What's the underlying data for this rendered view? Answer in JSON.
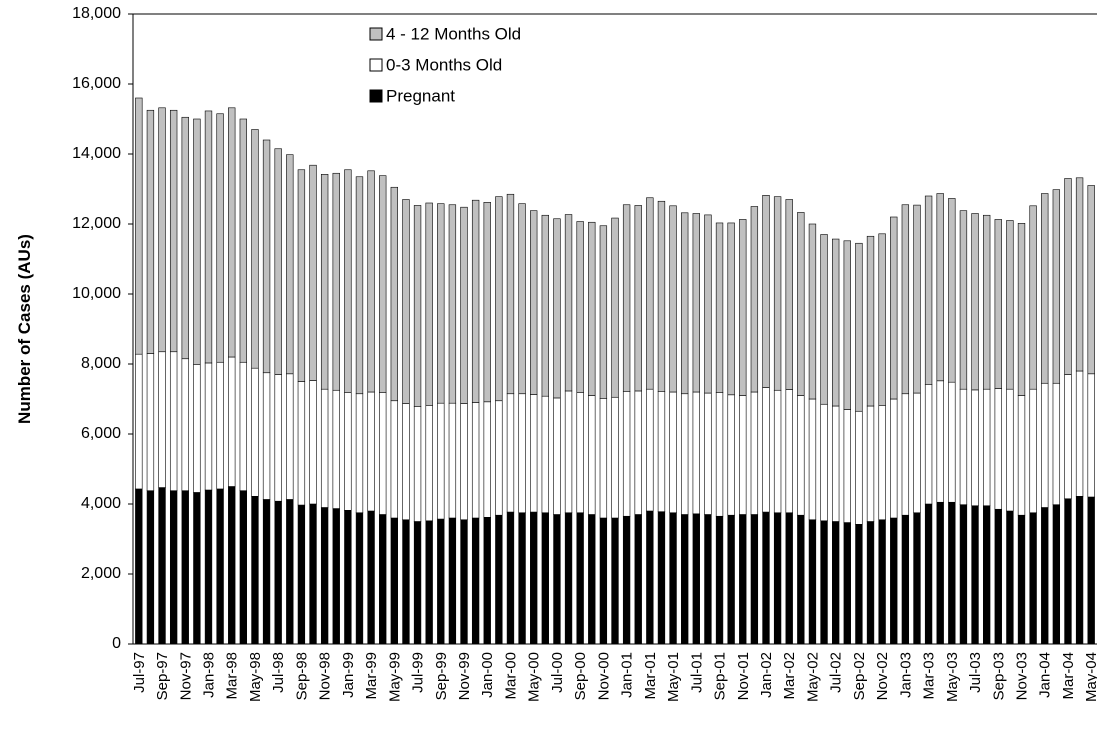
{
  "chart_data": {
    "type": "stacked_bar",
    "y_label": "Number of Cases (AUs)",
    "categories": [
      "Jul-97",
      null,
      "Sep-97",
      null,
      "Nov-97",
      null,
      "Jan-98",
      null,
      "Mar-98",
      null,
      "May-98",
      null,
      "Jul-98",
      null,
      "Sep-98",
      null,
      "Nov-98",
      null,
      "Jan-99",
      null,
      "Mar-99",
      null,
      "May-99",
      null,
      "Jul-99",
      null,
      "Sep-99",
      null,
      "Nov-99",
      null,
      "Jan-00",
      null,
      "Mar-00",
      null,
      "May-00",
      null,
      "Jul-00",
      null,
      "Sep-00",
      null,
      "Nov-00",
      null,
      "Jan-01",
      null,
      "Mar-01",
      null,
      "May-01",
      null,
      "Jul-01",
      null,
      "Sep-01",
      null,
      "Nov-01",
      null,
      "Jan-02",
      null,
      "Mar-02",
      null,
      "May-02",
      null,
      "Jul-02",
      null,
      "Sep-02",
      null,
      "Nov-02",
      null,
      "Jan-03",
      null,
      "Mar-03",
      null,
      "May-03",
      null,
      "Jul-03",
      null,
      "Sep-03",
      null,
      "Nov-03",
      null,
      "Jan-04",
      null,
      "Mar-04",
      null,
      "May-04"
    ],
    "series": [
      {
        "name": "Pregnant",
        "color": "#000000",
        "values": [
          4430,
          4380,
          4470,
          4380,
          4380,
          4330,
          4400,
          4430,
          4500,
          4380,
          4220,
          4130,
          4080,
          4130,
          3970,
          4000,
          3900,
          3870,
          3820,
          3750,
          3800,
          3700,
          3600,
          3550,
          3500,
          3520,
          3570,
          3600,
          3550,
          3600,
          3620,
          3680,
          3770,
          3750,
          3770,
          3750,
          3700,
          3750,
          3750,
          3700,
          3600,
          3600,
          3650,
          3700,
          3800,
          3780,
          3750,
          3700,
          3720,
          3700,
          3650,
          3680,
          3700,
          3700,
          3770,
          3750,
          3750,
          3680,
          3550,
          3520,
          3500,
          3470,
          3420,
          3500,
          3550,
          3600,
          3680,
          3750,
          4000,
          4050,
          4050,
          3980,
          3950,
          3950,
          3850,
          3800,
          3680,
          3750,
          3900,
          3980,
          4150,
          4220,
          4200
        ]
      },
      {
        "name": "0-3 Months Old",
        "color": "#ffffff",
        "values": [
          3850,
          3920,
          3880,
          3970,
          3770,
          3650,
          3630,
          3620,
          3700,
          3670,
          3660,
          3620,
          3620,
          3590,
          3530,
          3530,
          3380,
          3380,
          3360,
          3400,
          3400,
          3480,
          3350,
          3320,
          3280,
          3300,
          3310,
          3280,
          3320,
          3300,
          3300,
          3270,
          3380,
          3400,
          3360,
          3330,
          3330,
          3480,
          3430,
          3400,
          3420,
          3450,
          3570,
          3530,
          3480,
          3440,
          3450,
          3450,
          3480,
          3470,
          3530,
          3440,
          3400,
          3500,
          3560,
          3500,
          3520,
          3420,
          3450,
          3330,
          3300,
          3230,
          3230,
          3300,
          3270,
          3400,
          3470,
          3420,
          3420,
          3470,
          3430,
          3300,
          3310,
          3330,
          3450,
          3480,
          3420,
          3530,
          3550,
          3470,
          3550,
          3580,
          3520
        ]
      },
      {
        "name": "4 - 12 Months Old",
        "color": "#c0c0c0",
        "values": [
          7320,
          6950,
          6970,
          6900,
          6900,
          7020,
          7200,
          7100,
          7120,
          6950,
          6820,
          6650,
          6450,
          6260,
          6050,
          6150,
          6140,
          6200,
          6370,
          6200,
          6320,
          6200,
          6100,
          5830,
          5750,
          5780,
          5700,
          5670,
          5610,
          5780,
          5700,
          5830,
          5700,
          5430,
          5250,
          5170,
          5120,
          5040,
          4890,
          4950,
          4930,
          5120,
          5330,
          5300,
          5470,
          5430,
          5320,
          5170,
          5100,
          5090,
          4850,
          4910,
          5030,
          5300,
          5490,
          5530,
          5430,
          5230,
          5000,
          4850,
          4770,
          4820,
          4800,
          4850,
          4900,
          5200,
          5400,
          5370,
          5380,
          5350,
          5250,
          5100,
          5040,
          4970,
          4830,
          4820,
          4920,
          5240,
          5420,
          5530,
          5600,
          5520,
          5380
        ]
      }
    ],
    "ylim": [
      0,
      18000
    ],
    "yticks": [
      0,
      {
        "value": 2000,
        "label": "2,000"
      },
      {
        "value": 4000,
        "label": "4,000"
      },
      {
        "value": 6000,
        "label": "6,000"
      },
      {
        "value": 8000,
        "label": "8,000"
      },
      {
        "value": 10000,
        "label": "10,000"
      },
      {
        "value": 12000,
        "label": "12,000"
      },
      {
        "value": 14000,
        "label": "14,000"
      },
      {
        "value": 16000,
        "label": "16,000"
      },
      {
        "value": 18000,
        "label": "18,000"
      }
    ],
    "grid": false,
    "legend": "top"
  }
}
